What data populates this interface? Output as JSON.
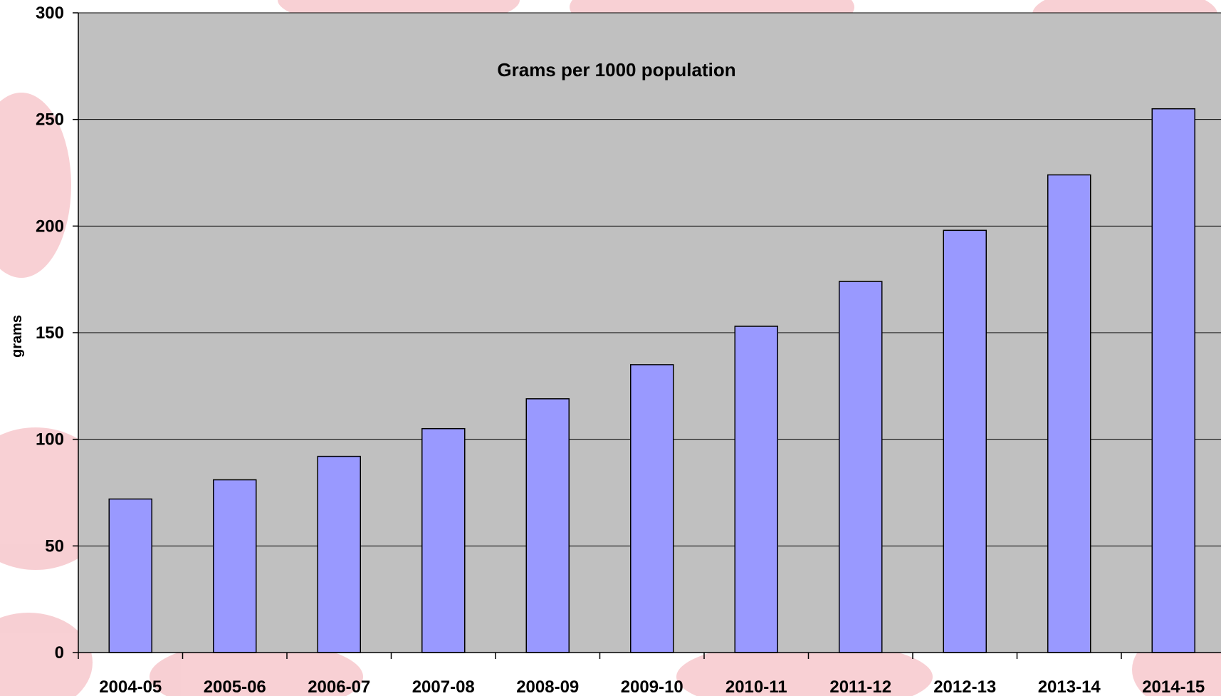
{
  "colors": {
    "plot_background": "#c0c0c0",
    "bar_fill": "#9999ff",
    "bar_stroke": "#000000",
    "gridline": "#000000",
    "decor_blob": "#f4b8bd"
  },
  "chart_data": {
    "type": "bar",
    "title": "Grams per 1000 population",
    "xlabel": "",
    "ylabel": "grams",
    "ylim": [
      0,
      300
    ],
    "yticks": [
      0,
      50,
      100,
      150,
      200,
      250,
      300
    ],
    "categories": [
      "2004-05",
      "2005-06",
      "2006-07",
      "2007-08",
      "2008-09",
      "2009-10",
      "2010-11",
      "2011-12",
      "2012-13",
      "2013-14",
      "2014-15"
    ],
    "values": [
      72,
      81,
      92,
      105,
      119,
      135,
      153,
      174,
      198,
      224,
      255
    ],
    "grid": "horizontal",
    "legend": "none"
  }
}
